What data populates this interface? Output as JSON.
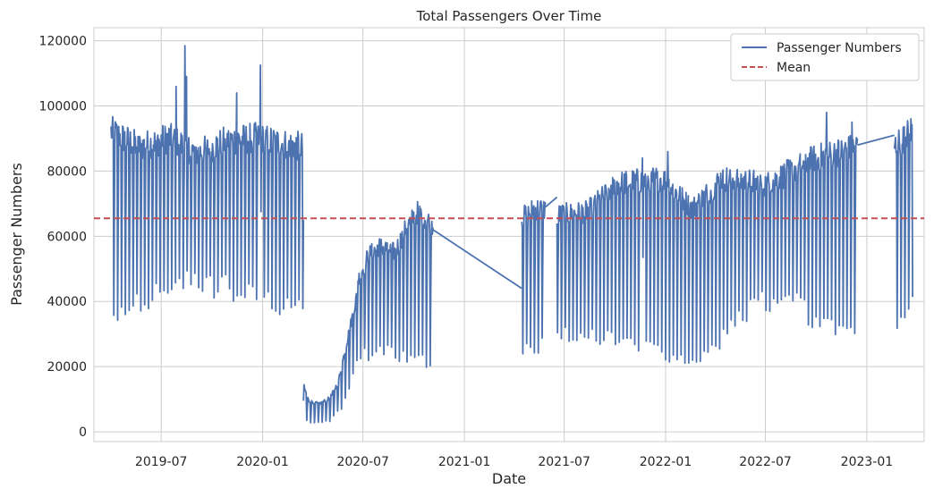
{
  "chart_data": {
    "type": "line",
    "title": "Total Passengers Over Time",
    "xlabel": "Date",
    "ylabel": "Passenger Numbers",
    "xlim": [
      "2019-03-01",
      "2023-04-15"
    ],
    "ylim": [
      -3000,
      124000
    ],
    "x_ticks": [
      "2019-07-01",
      "2020-01-01",
      "2020-07-01",
      "2021-01-01",
      "2021-07-01",
      "2022-01-01",
      "2022-07-01",
      "2023-01-01"
    ],
    "x_tick_labels": [
      "2019-07",
      "2020-01",
      "2020-07",
      "2021-01",
      "2021-07",
      "2022-01",
      "2022-07",
      "2023-01"
    ],
    "y_ticks": [
      0,
      20000,
      40000,
      60000,
      80000,
      100000,
      120000
    ],
    "y_tick_labels": [
      "0",
      "20000",
      "40000",
      "60000",
      "80000",
      "100000",
      "120000"
    ],
    "grid": true,
    "legend_position": "top-right",
    "series": [
      {
        "name": "Passenger Numbers",
        "color": "#4c72b0",
        "style": "solid",
        "segments": [
          {
            "start": "2019-04-01",
            "end": "2020-03-15",
            "weekly_high": [
              [
                0,
                97000
              ],
              [
                0.15,
                92000
              ],
              [
                0.3,
                95000
              ],
              [
                0.45,
                90000
              ],
              [
                0.6,
                94000
              ],
              [
                0.75,
                95000
              ],
              [
                0.9,
                93000
              ],
              [
                1,
                92000
              ]
            ],
            "weekly_low": [
              [
                0,
                34000
              ],
              [
                0.2,
                42000
              ],
              [
                0.4,
                45000
              ],
              [
                0.6,
                44000
              ],
              [
                0.8,
                40000
              ],
              [
                1,
                38000
              ]
            ],
            "spikes": [
              [
                "2019-08-13",
                118500
              ],
              [
                "2019-08-16",
                109000
              ],
              [
                "2019-12-28",
                112500
              ],
              [
                "2019-07-28",
                106000
              ],
              [
                "2019-11-15",
                104000
              ]
            ]
          },
          {
            "start": "2020-03-15",
            "end": "2020-06-20",
            "weekly_high": [
              [
                0,
                15000
              ],
              [
                0.1,
                10000
              ],
              [
                0.3,
                9000
              ],
              [
                0.5,
                11000
              ],
              [
                0.65,
                16000
              ],
              [
                0.8,
                28000
              ],
              [
                1,
                44000
              ]
            ],
            "weekly_low": [
              [
                0,
                4000
              ],
              [
                0.2,
                2500
              ],
              [
                0.5,
                3500
              ],
              [
                0.7,
                7000
              ],
              [
                0.85,
                14000
              ],
              [
                1,
                22000
              ]
            ],
            "spikes": []
          },
          {
            "start": "2020-06-20",
            "end": "2020-11-05",
            "weekly_high": [
              [
                0,
                48000
              ],
              [
                0.15,
                57000
              ],
              [
                0.3,
                60000
              ],
              [
                0.5,
                58000
              ],
              [
                0.65,
                66000
              ],
              [
                0.8,
                71000
              ],
              [
                1,
                67000
              ]
            ],
            "weekly_low": [
              [
                0,
                23000
              ],
              [
                0.3,
                25000
              ],
              [
                0.6,
                23000
              ],
              [
                0.85,
                22000
              ],
              [
                1,
                18000
              ]
            ],
            "spikes": []
          },
          {
            "start": "2021-04-15",
            "end": "2021-05-28",
            "weekly_high": [
              [
                0,
                69000
              ],
              [
                0.5,
                72000
              ],
              [
                1,
                72000
              ]
            ],
            "weekly_low": [
              [
                0,
                26000
              ],
              [
                0.5,
                24000
              ],
              [
                1,
                28000
              ]
            ],
            "spikes": []
          },
          {
            "start": "2021-06-18",
            "end": "2022-12-15",
            "weekly_high": [
              [
                0,
                70000
              ],
              [
                0.1,
                71000
              ],
              [
                0.2,
                80000
              ],
              [
                0.35,
                82000
              ],
              [
                0.45,
                72000
              ],
              [
                0.55,
                82000
              ],
              [
                0.7,
                80000
              ],
              [
                0.85,
                88000
              ],
              [
                1,
                92000
              ]
            ],
            "weekly_low": [
              [
                0,
                30000
              ],
              [
                0.2,
                28000
              ],
              [
                0.4,
                23000
              ],
              [
                0.5,
                24000
              ],
              [
                0.65,
                38000
              ],
              [
                0.75,
                43000
              ],
              [
                0.85,
                35000
              ],
              [
                1,
                31000
              ]
            ],
            "spikes": [
              [
                "2021-11-20",
                84000
              ],
              [
                "2022-01-05",
                86000
              ],
              [
                "2022-10-20",
                98000
              ],
              [
                "2022-12-05",
                95000
              ]
            ]
          },
          {
            "start": "2023-02-20",
            "end": "2023-03-25",
            "weekly_high": [
              [
                0,
                92000
              ],
              [
                0.5,
                95000
              ],
              [
                1,
                98000
              ]
            ],
            "weekly_low": [
              [
                0,
                36000
              ],
              [
                0.5,
                31000
              ],
              [
                1,
                40000
              ]
            ],
            "spikes": []
          }
        ],
        "connectors": [
          [
            [
              "2020-11-05",
              62000
            ],
            [
              "2021-04-15",
              44000
            ]
          ],
          [
            [
              "2021-05-28",
              69000
            ],
            [
              "2021-06-18",
              72000
            ]
          ],
          [
            [
              "2022-12-15",
              88000
            ],
            [
              "2023-02-20",
              91000
            ]
          ]
        ]
      },
      {
        "name": "Mean",
        "color": "#c44e52",
        "style": "dashed",
        "y": 65500
      }
    ]
  }
}
